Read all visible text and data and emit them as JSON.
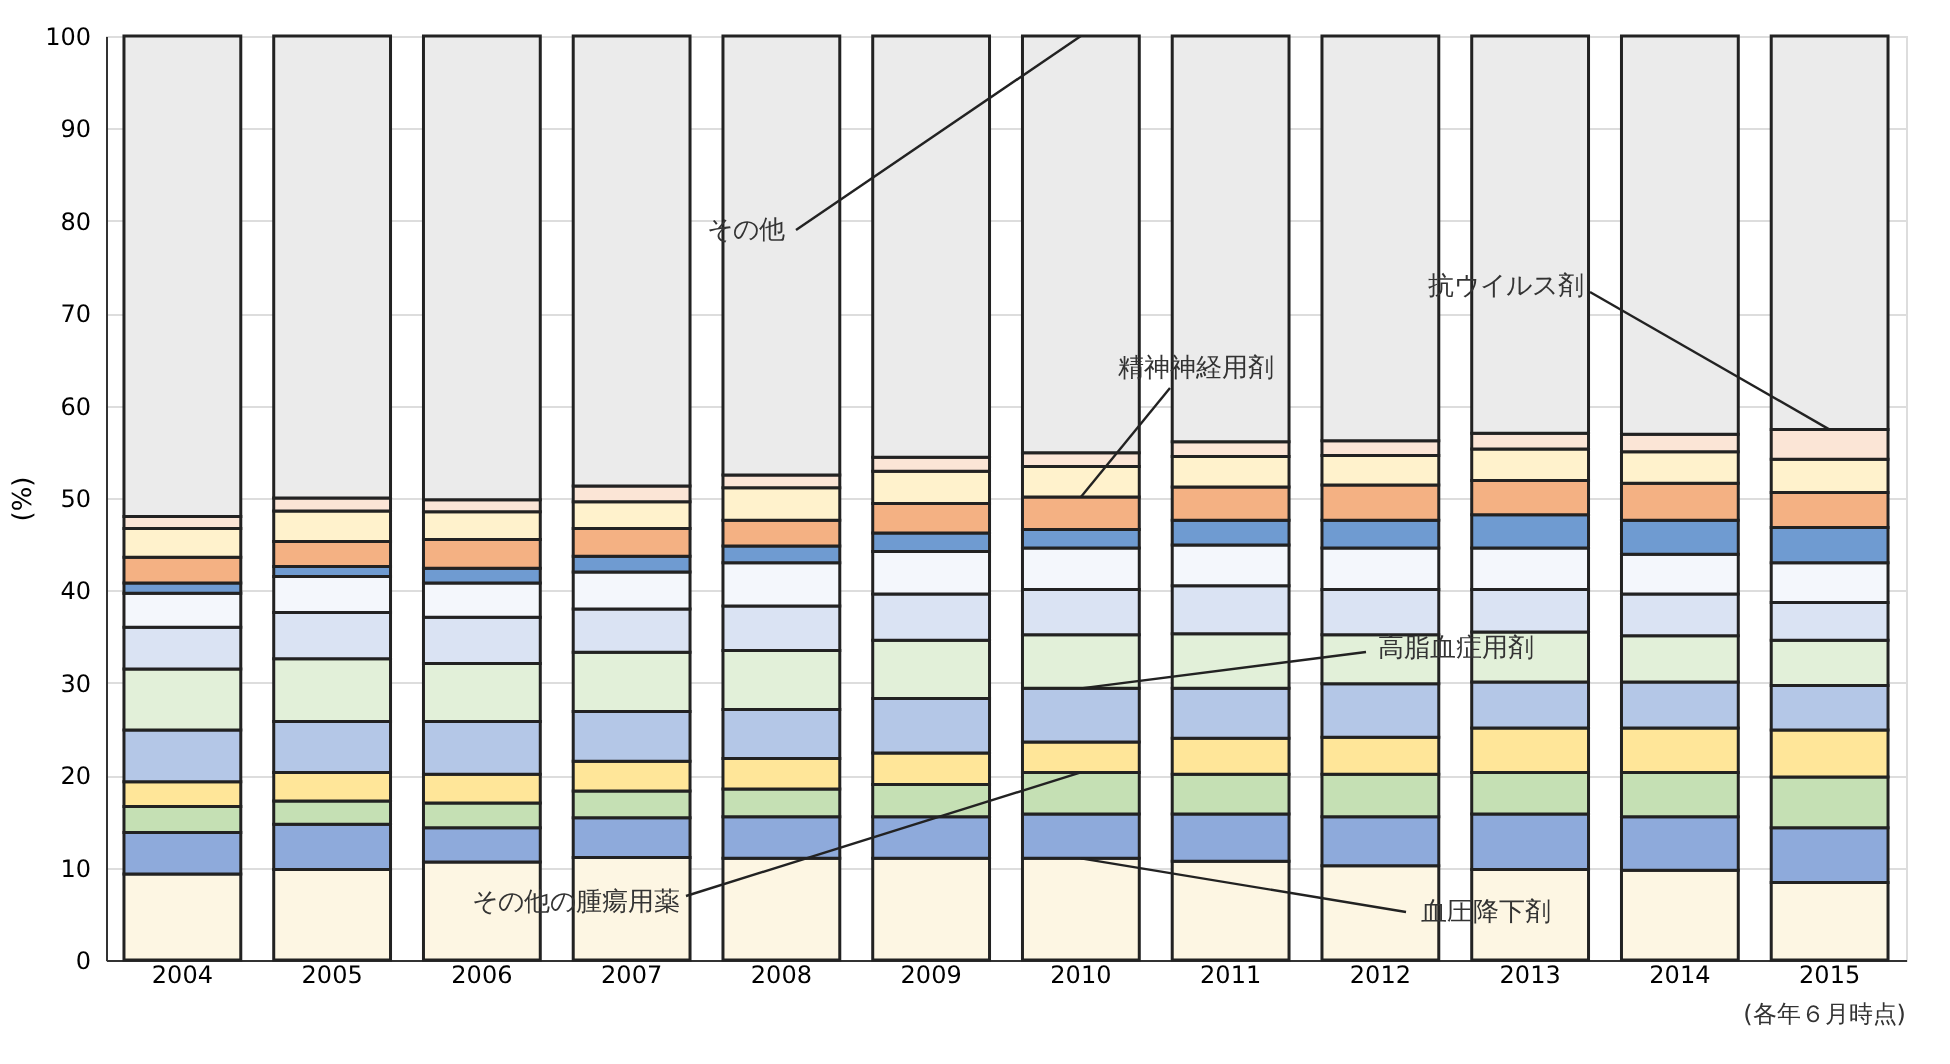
{
  "chart_data": {
    "type": "bar",
    "stacked": true,
    "ylabel": "(%)",
    "categories": [
      "2004",
      "2005",
      "2006",
      "2007",
      "2008",
      "2009",
      "2010",
      "2011",
      "2012",
      "2013",
      "2014",
      "2015"
    ],
    "ylim": [
      0,
      100
    ],
    "yticks": [
      0,
      10,
      20,
      30,
      40,
      50,
      60,
      70,
      80,
      90,
      100
    ],
    "grid": "y",
    "legend": false,
    "series": [
      {
        "color": "#fdf6e3",
        "values": [
          9.3,
          9.8,
          10.6,
          11.1,
          11.0,
          11.0,
          11.0,
          10.7,
          10.2,
          9.8,
          9.7,
          8.4
        ]
      },
      {
        "color": "#8eaadb",
        "values": [
          4.5,
          4.9,
          3.7,
          4.3,
          4.5,
          4.5,
          4.8,
          5.1,
          5.3,
          6.0,
          5.8,
          5.9
        ]
      },
      {
        "color": "#c5e0b4",
        "values": [
          2.8,
          2.5,
          2.7,
          2.9,
          3.0,
          3.5,
          4.5,
          4.3,
          4.6,
          4.5,
          4.8,
          5.5
        ]
      },
      {
        "color": "#ffe699",
        "values": [
          2.7,
          3.1,
          3.1,
          3.2,
          3.3,
          3.4,
          3.3,
          3.9,
          4.0,
          4.8,
          4.8,
          5.1
        ]
      },
      {
        "color": "#b4c7e7",
        "values": [
          5.6,
          5.5,
          5.7,
          5.4,
          5.3,
          5.9,
          5.8,
          5.4,
          5.8,
          5.0,
          5.0,
          4.8
        ]
      },
      {
        "color": "#e2f0d9",
        "values": [
          6.6,
          6.8,
          6.3,
          6.4,
          6.4,
          6.3,
          5.8,
          5.9,
          5.3,
          5.4,
          5.0,
          4.9
        ]
      },
      {
        "color": "#dae3f3",
        "values": [
          4.5,
          5.0,
          5.0,
          4.7,
          4.8,
          5.0,
          4.9,
          5.2,
          4.9,
          4.6,
          4.5,
          4.1
        ]
      },
      {
        "color": "#f4f7fc",
        "values": [
          3.7,
          3.9,
          3.7,
          4.0,
          4.7,
          4.6,
          4.5,
          4.4,
          4.5,
          4.5,
          4.3,
          4.3
        ]
      },
      {
        "color": "#6f9bd1",
        "values": [
          1.1,
          1.1,
          1.6,
          1.7,
          1.8,
          2.0,
          2.0,
          2.7,
          3.0,
          3.6,
          3.7,
          3.8
        ]
      },
      {
        "color": "#f4b183",
        "values": [
          2.8,
          2.7,
          3.1,
          3.0,
          2.8,
          3.2,
          3.5,
          3.6,
          3.8,
          3.7,
          4.0,
          3.8
        ]
      },
      {
        "color": "#fff2cc",
        "values": [
          3.1,
          3.3,
          3.0,
          2.9,
          3.5,
          3.5,
          3.3,
          3.3,
          3.2,
          3.4,
          3.4,
          3.6
        ]
      },
      {
        "color": "#fbe5d6",
        "values": [
          1.3,
          1.4,
          1.3,
          1.7,
          1.4,
          1.5,
          1.5,
          1.6,
          1.6,
          1.7,
          1.9,
          3.2
        ]
      },
      {
        "color": "#ebebeb",
        "values": [
          52.0,
          50.0,
          50.2,
          48.7,
          47.5,
          45.6,
          45.1,
          43.9,
          43.8,
          43.0,
          43.1,
          42.6
        ]
      }
    ],
    "annotations": [
      {
        "text": "その他",
        "x": "2010",
        "y": 100
      },
      {
        "text": "精神神経用剤",
        "x": "2010",
        "y": 50.1
      },
      {
        "text": "抗ウイルス剤",
        "x": "2015",
        "y": 57.4
      },
      {
        "text": "高脂血症用剤",
        "x": "2010",
        "y": 29.4
      },
      {
        "text": "その他の腫瘍用薬",
        "x": "2010",
        "y": 20.3
      },
      {
        "text": "血圧降下剤",
        "x": "2010",
        "y": 11.0
      },
      "(各年６月時点)"
    ]
  }
}
